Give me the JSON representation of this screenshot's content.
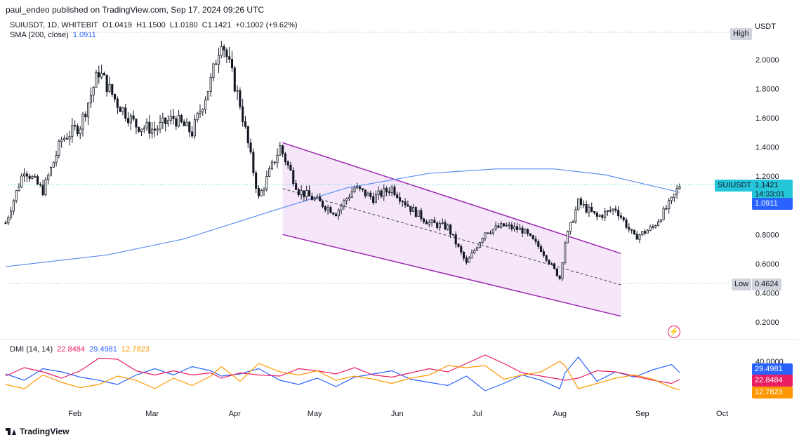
{
  "header": {
    "published_line": "paul_endeo published on TradingView.com, Sep 17, 2024 09:26 UTC"
  },
  "legend": {
    "symbol_line": "SUIUSDT, 1D, WHITEBIT",
    "open": "O1.0419",
    "high": "H1.1500",
    "low": "L1.0180",
    "close": "C1.1421",
    "change": "+0.1002 (+9.62%)",
    "sma_label": "SMA (200, close)",
    "sma_value": "1.0911",
    "dmi_label": "DMI (14, 14)",
    "dmi_adx": "22.8484",
    "dmi_plus": "29.4981",
    "dmi_minus": "12.7823"
  },
  "price_axis": {
    "currency": "USDT",
    "high_tag": "High",
    "low_tag": "Low",
    "low_value": "0.4624",
    "symbol_tag": "SUIUSDT",
    "last_price": "1.1421",
    "countdown": "14:33:01",
    "sma_tag": "1.0911",
    "dmi_tick": "40.0000",
    "dmi_plus_tag": "29.4981",
    "dmi_adx_tag": "22.8484",
    "dmi_minus_tag": "12.7823"
  },
  "footer": {
    "brand": "TradingView"
  },
  "colors": {
    "up": "#26a69a",
    "down": "#131722",
    "candle": "#131722",
    "sma": "#5b8def",
    "channel": "#9c27b0",
    "channel_fill": "#f3e1f7",
    "adx": "#e91e63",
    "plus_di": "#2962ff",
    "minus_di": "#ff9800"
  },
  "chart_data": [
    {
      "type": "candlestick",
      "title": "SUIUSDT, 1D, WHITEBIT",
      "x_tick_labels": [
        "Feb",
        "Mar",
        "Apr",
        "May",
        "Jun",
        "Jul",
        "Aug",
        "Sep",
        "Oct"
      ],
      "y_tick_labels": [
        "2.0000",
        "1.8000",
        "1.6000",
        "1.4000",
        "1.2000",
        "0.8000",
        "0.6000",
        "0.4000",
        "0.2000"
      ],
      "ylim": [
        0.1,
        2.2
      ],
      "xlim": [
        "2024-01-08",
        "2024-10-06"
      ],
      "series": [
        {
          "name": "SUIUSDT close (approx.)",
          "x": [
            "2024-01-08",
            "2024-01-15",
            "2024-01-22",
            "2024-01-29",
            "2024-02-05",
            "2024-02-12",
            "2024-02-19",
            "2024-02-26",
            "2024-03-04",
            "2024-03-11",
            "2024-03-18",
            "2024-03-25",
            "2024-03-29",
            "2024-04-05",
            "2024-04-12",
            "2024-04-20",
            "2024-04-27",
            "2024-05-04",
            "2024-05-11",
            "2024-05-18",
            "2024-05-25",
            "2024-06-01",
            "2024-06-08",
            "2024-06-15",
            "2024-06-22",
            "2024-06-29",
            "2024-07-06",
            "2024-07-13",
            "2024-07-20",
            "2024-07-27",
            "2024-08-03",
            "2024-08-05",
            "2024-08-10",
            "2024-08-17",
            "2024-08-24",
            "2024-08-31",
            "2024-09-07",
            "2024-09-14",
            "2024-09-17"
          ],
          "values": [
            0.88,
            1.25,
            1.1,
            1.45,
            1.55,
            1.92,
            1.7,
            1.55,
            1.52,
            1.6,
            1.5,
            1.85,
            2.15,
            1.7,
            1.05,
            1.4,
            1.1,
            1.03,
            0.95,
            1.12,
            1.05,
            1.12,
            0.98,
            0.88,
            0.85,
            0.6,
            0.82,
            0.86,
            0.83,
            0.7,
            0.5,
            0.75,
            1.02,
            0.92,
            0.98,
            0.78,
            0.85,
            1.03,
            1.14
          ]
        },
        {
          "name": "SMA (200, close)",
          "x": [
            "2024-01-08",
            "2024-02-15",
            "2024-03-15",
            "2024-04-15",
            "2024-05-15",
            "2024-06-15",
            "2024-07-10",
            "2024-08-01",
            "2024-08-20",
            "2024-09-17"
          ],
          "values": [
            0.58,
            0.66,
            0.77,
            0.95,
            1.12,
            1.22,
            1.25,
            1.25,
            1.21,
            1.09
          ]
        }
      ],
      "channel": {
        "upper": [
          [
            "2024-04-21",
            1.43
          ],
          [
            "2024-08-26",
            0.67
          ]
        ],
        "lower": [
          [
            "2024-04-21",
            0.8
          ],
          [
            "2024-08-26",
            0.24
          ]
        ]
      },
      "high_value": 2.17,
      "low_value": 0.4624
    },
    {
      "type": "line",
      "title": "DMI (14, 14)",
      "y_tick_labels": [
        "40.0000"
      ],
      "series": [
        {
          "name": "+DI",
          "values": [
            28,
            22,
            33,
            30,
            25,
            22,
            18,
            27,
            33,
            27,
            35,
            31,
            26,
            28,
            33,
            22,
            18,
            24,
            16,
            25,
            28,
            31,
            23,
            20,
            17,
            26,
            12,
            19,
            27,
            22,
            14,
            29,
            44,
            21,
            30,
            25,
            32,
            37,
            29.4981
          ]
        },
        {
          "name": "ADX",
          "values": [
            26,
            34,
            30,
            24,
            31,
            43,
            42,
            31,
            27,
            31,
            27,
            29,
            24,
            29,
            27,
            26,
            33,
            31,
            28,
            34,
            27,
            25,
            29,
            33,
            30,
            38,
            46,
            38,
            29,
            26,
            23,
            22,
            24,
            31,
            30,
            26,
            22,
            19,
            22.8484
          ]
        },
        {
          "name": "-DI",
          "values": [
            18,
            14,
            27,
            20,
            15,
            18,
            26,
            22,
            14,
            24,
            17,
            26,
            35,
            21,
            38,
            30,
            27,
            31,
            22,
            26,
            23,
            19,
            24,
            27,
            36,
            34,
            36,
            23,
            27,
            30,
            40,
            36,
            14,
            19,
            24,
            27,
            23,
            15,
            12.7823
          ]
        }
      ]
    }
  ]
}
